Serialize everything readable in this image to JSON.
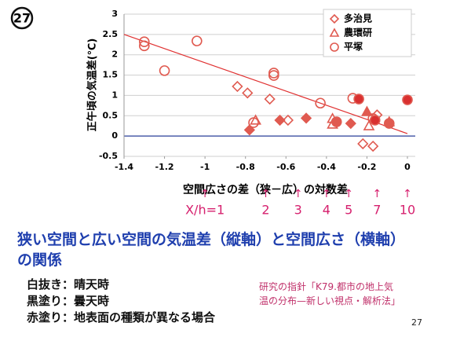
{
  "chart_data": {
    "type": "scatter",
    "y_label": "正午頃の気温差(℃)",
    "x_label": "空間広さの差（狭－広）の対数差",
    "xlim": [
      -1.4,
      0
    ],
    "xticks": [
      -1.4,
      -1.2,
      -1,
      -0.8,
      -0.6,
      -0.4,
      -0.2,
      0
    ],
    "ylim": [
      -0.5,
      3
    ],
    "yticks": [
      -0.5,
      0,
      0.5,
      1,
      1.5,
      2,
      2.5,
      3
    ],
    "grid": true,
    "legend": "upper right",
    "series": [
      {
        "name": "多治見",
        "marker": "diamond",
        "color": "#e05a50",
        "x": [
          -0.84,
          -0.79,
          -0.68,
          -0.59,
          -0.5,
          -0.78,
          -0.22,
          -0.17,
          -0.15,
          -0.28,
          -0.63
        ],
        "values": [
          1.22,
          1.06,
          0.91,
          0.39,
          0.44,
          0.15,
          -0.19,
          -0.25,
          0.52,
          0.31,
          0.39
        ],
        "fills": [
          "none",
          "none",
          "none",
          "none",
          "#e05a50",
          "#e05a50",
          "none",
          "none",
          "none",
          "#e05a50",
          "#e05a50"
        ]
      },
      {
        "name": "農環研",
        "marker": "triangle",
        "color": "#e05a50",
        "x": [
          -0.75,
          -0.37,
          -0.37,
          -0.09,
          -0.2,
          -0.19
        ],
        "values": [
          0.39,
          0.43,
          0.29,
          0.35,
          0.6,
          0.25
        ],
        "fills": [
          "none",
          "none",
          "none",
          "none",
          "#e05a50",
          "none"
        ]
      },
      {
        "name": "平塚",
        "marker": "circle",
        "color": "#e05a50",
        "x": [
          -1.3,
          -1.3,
          -1.04,
          -1.2,
          -0.66,
          -0.66,
          -0.43,
          -0.27,
          -0.24,
          -0.76,
          -0.35,
          -0.17,
          0,
          -0.16,
          -0.09
        ],
        "values": [
          2.32,
          2.22,
          2.34,
          1.61,
          1.55,
          1.49,
          0.81,
          0.93,
          0.91,
          0.33,
          0.35,
          0.43,
          0.89,
          0.39,
          0.31
        ],
        "fills": [
          "none",
          "none",
          "none",
          "none",
          "none",
          "none",
          "none",
          "none",
          "#d93030",
          "none",
          "#e05a50",
          "none",
          "#d93030",
          "#d93030",
          "#e05a50"
        ]
      }
    ],
    "trendline": {
      "color": "#e03030",
      "x": [
        -1.4,
        0
      ],
      "values": [
        2.5,
        0.06
      ]
    },
    "annotations": [
      {
        "x": -1,
        "label": "X/h=1"
      },
      {
        "x": -0.7,
        "label": "2"
      },
      {
        "x": -0.54,
        "label": "3"
      },
      {
        "x": -0.4,
        "label": "4"
      },
      {
        "x": -0.29,
        "label": "5"
      },
      {
        "x": -0.15,
        "label": "7"
      },
      {
        "x": 0,
        "label": "10"
      }
    ]
  },
  "slide": {
    "badge": "27",
    "heading_lines": [
      "狭い空間と広い空間の気温差（縦軸）と空間広さ（横軸）",
      "の関係"
    ],
    "notes": [
      "白抜き：晴天時",
      "黒塗り：曇天時",
      "赤塗り：地表面の種類が異なる場合"
    ],
    "reference_lines": [
      "研究の指針「K79.都市の地上気",
      "温の分布—新しい視点・解析法」"
    ],
    "page_number": "27"
  }
}
